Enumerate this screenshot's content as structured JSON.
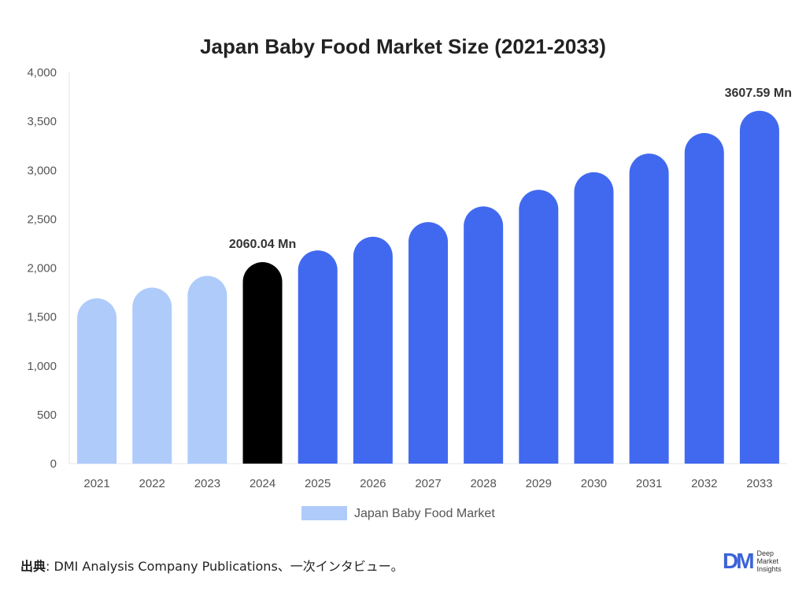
{
  "chart_data": {
    "type": "bar",
    "title": "Japan Baby Food Market Size (2021-2033)",
    "categories": [
      "2021",
      "2022",
      "2023",
      "2024",
      "2025",
      "2026",
      "2027",
      "2028",
      "2029",
      "2030",
      "2031",
      "2032",
      "2033"
    ],
    "series": [
      {
        "name": "Japan Baby Food Market",
        "values": [
          1690,
          1800,
          1920,
          2060.04,
          2180,
          2320,
          2470,
          2630,
          2800,
          2980,
          3170,
          3380,
          3607.59
        ]
      }
    ],
    "bar_colors": [
      "#aecbfa",
      "#aecbfa",
      "#aecbfa",
      "#000000",
      "#4169f0",
      "#4169f0",
      "#4169f0",
      "#4169f0",
      "#4169f0",
      "#4169f0",
      "#4169f0",
      "#4169f0",
      "#4169f0"
    ],
    "ylim": [
      0,
      4000
    ],
    "yticks": [
      0,
      500,
      1000,
      1500,
      2000,
      2500,
      3000,
      3500,
      4000
    ],
    "ytick_labels": [
      "0",
      "500",
      "1,000",
      "1,500",
      "2,000",
      "2,500",
      "3,000",
      "3,500",
      "4,000"
    ],
    "data_labels": [
      {
        "category": "2024",
        "text": "2060.04 Mn"
      },
      {
        "category": "2033",
        "text": "3607.59 Mn"
      }
    ],
    "legend": {
      "label": "Japan Baby Food Market",
      "color": "#aecbfa",
      "position": "bottom"
    },
    "grid": false
  },
  "source": {
    "prefix": "出典",
    "text": ": DMI Analysis Company Publications、一次インタビュー。"
  },
  "logo": {
    "mark": "DM",
    "line1": "Deep",
    "line2": "Market",
    "line3": "Insights",
    "color": "#3b63d8"
  }
}
